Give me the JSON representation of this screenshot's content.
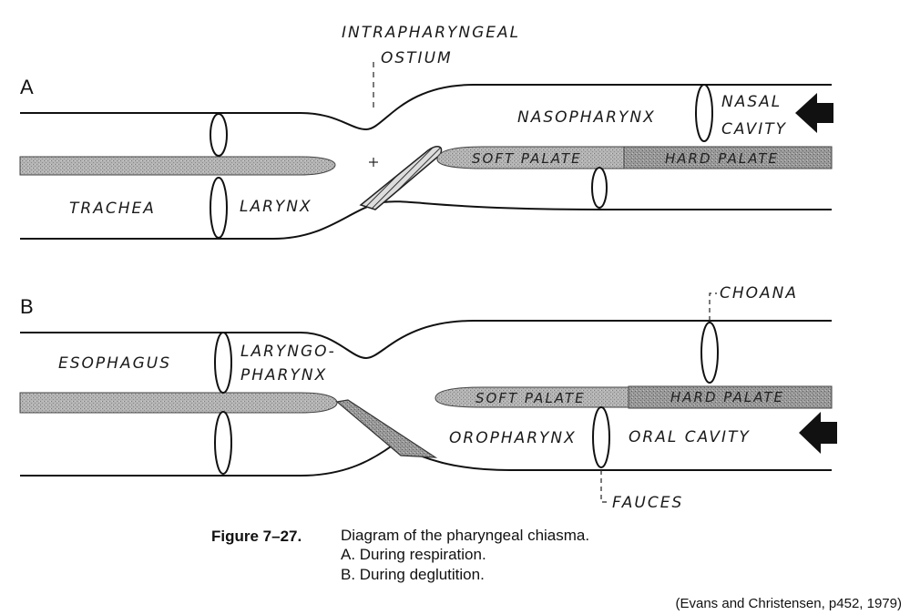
{
  "figure": {
    "caption_title": "Figure 7–27.",
    "caption_lines": [
      "Diagram of the pharyngeal chiasma.",
      "A. During respiration.",
      "B. During deglutition."
    ],
    "citation": "(Evans and Christensen, p452, 1979)"
  },
  "panel_a": {
    "letter": "A",
    "labels": {
      "intrapharyngeal": "INTRAPHARYNGEAL",
      "ostium": "OSTIUM",
      "nasopharynx": "NASOPHARYNX",
      "nasal": "NASAL",
      "cavity": "CAVITY",
      "trachea": "TRACHEA",
      "larynx": "LARYNX",
      "soft_palate": "SOFT PALATE",
      "hard_palate": "HARD PALATE"
    }
  },
  "panel_b": {
    "letter": "B",
    "labels": {
      "choana": "CHOANA",
      "esophagus": "ESOPHAGUS",
      "laryngo": "LARYNGO-",
      "pharynx": "PHARYNX",
      "soft_palate": "SOFT PALATE",
      "hard_palate": "HARD PALATE",
      "oropharynx": "OROPHARYNX",
      "oral_cavity": "ORAL CAVITY",
      "fauces": "FAUCES"
    }
  },
  "colors": {
    "ink": "#111111",
    "plate_fill": "#a9a9a9",
    "plate_dark": "#8a8a8a"
  }
}
